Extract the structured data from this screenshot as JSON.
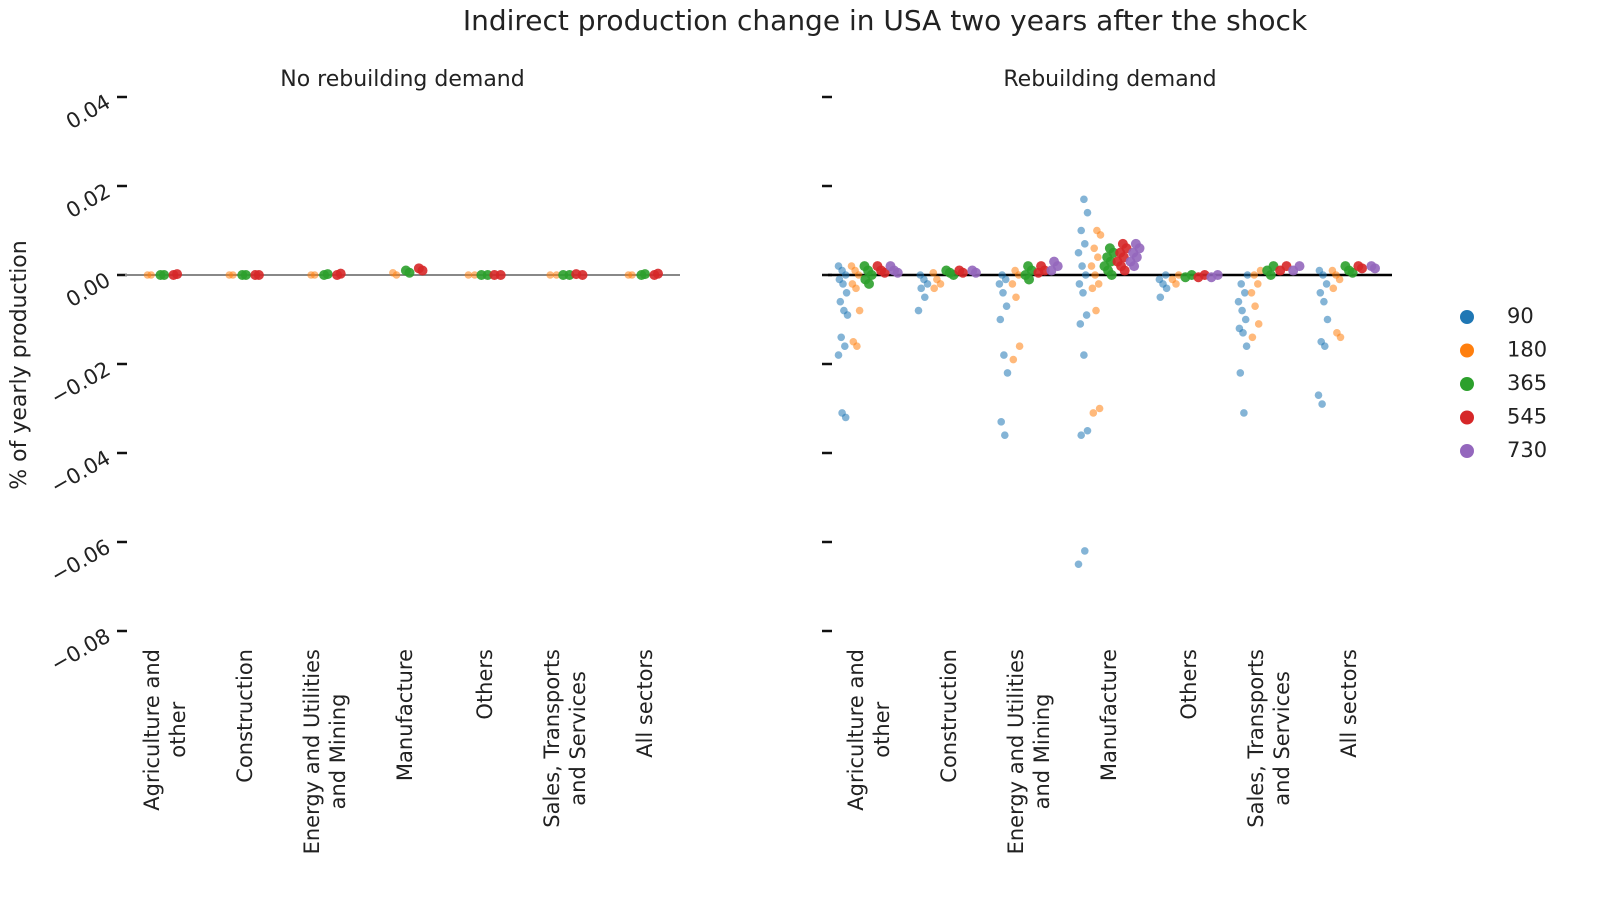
{
  "title": "Indirect production change in USA two years after the shock",
  "ylabel": "% of yearly production",
  "legend": "right",
  "series": [
    {
      "name": "90",
      "color": "#1f77b4"
    },
    {
      "name": "180",
      "color": "#ff7f0e"
    },
    {
      "name": "365",
      "color": "#2ca02c"
    },
    {
      "name": "545",
      "color": "#d62728"
    },
    {
      "name": "730",
      "color": "#9467bd"
    }
  ],
  "chart_data": [
    {
      "type": "strip",
      "title": "No rebuilding demand",
      "categories": [
        "Agriculture and\nother",
        "Construction",
        "Energy and Utilities\nand Mining",
        "Manufacture",
        "Others",
        "Sales, Transports\nand Services",
        "All sectors"
      ],
      "ylim": [
        -0.08,
        0.04
      ],
      "yticks": [
        {
          "value": -0.08,
          "label": "−0.08"
        },
        {
          "value": -0.06,
          "label": "−0.06"
        },
        {
          "value": -0.04,
          "label": "−0.04"
        },
        {
          "value": -0.02,
          "label": "−0.02"
        },
        {
          "value": 0,
          "label": "0.00"
        },
        0.02,
        0.04
      ],
      "values": [
        [
          [],
          [],
          [],
          [],
          [],
          [],
          []
        ],
        [
          [
            0,
            0
          ],
          [
            0,
            0
          ],
          [
            0,
            0
          ],
          [
            0.0005,
            0
          ],
          [
            0,
            0
          ],
          [
            0,
            0
          ],
          [
            0,
            0
          ]
        ],
        [
          [
            0,
            0
          ],
          [
            0,
            0
          ],
          [
            0,
            0.0002
          ],
          [
            0.001,
            0.0005
          ],
          [
            0,
            0
          ],
          [
            0,
            0
          ],
          [
            0,
            0.0002
          ]
        ],
        [
          [
            0,
            0.0002
          ],
          [
            0,
            0
          ],
          [
            0,
            0.0003
          ],
          [
            0.0015,
            0.001
          ],
          [
            0,
            0
          ],
          [
            0,
            0.0002
          ],
          [
            0,
            0.0003
          ]
        ],
        [
          [],
          [],
          [],
          [],
          [],
          [],
          []
        ]
      ]
    },
    {
      "type": "strip",
      "title": "Rebuilding demand",
      "categories": [
        "Agriculture and\nother",
        "Construction",
        "Energy and Utilities\nand Mining",
        "Manufacture",
        "Others",
        "Sales, Transports\nand Services",
        "All sectors"
      ],
      "ylim": [
        -0.08,
        0.04
      ],
      "yticks": [
        -0.08,
        -0.06,
        -0.04,
        -0.02,
        0,
        0.02,
        0.04
      ],
      "values": [
        [
          [
            0.002,
            0.001,
            0,
            -0.001,
            -0.002,
            -0.004,
            -0.006,
            -0.008,
            -0.009,
            -0.014,
            -0.016,
            -0.018,
            -0.031,
            -0.032
          ],
          [
            0,
            -0.001,
            -0.002,
            -0.003,
            -0.005,
            -0.008
          ],
          [
            0,
            -0.001,
            -0.002,
            -0.004,
            -0.007,
            -0.01,
            -0.018,
            -0.022,
            -0.033,
            -0.036
          ],
          [
            0.017,
            0.014,
            0.01,
            0.007,
            0.005,
            0.002,
            0,
            -0.002,
            -0.004,
            -0.009,
            -0.011,
            -0.018,
            -0.035,
            -0.036,
            -0.062,
            -0.065
          ],
          [
            0,
            -0.001,
            -0.002,
            -0.003,
            -0.005
          ],
          [
            0,
            -0.002,
            -0.004,
            -0.006,
            -0.008,
            -0.01,
            -0.012,
            -0.013,
            -0.016,
            -0.022,
            -0.031
          ],
          [
            0.001,
            0,
            -0.002,
            -0.004,
            -0.006,
            -0.01,
            -0.015,
            -0.016,
            -0.027,
            -0.029
          ]
        ],
        [
          [
            0.002,
            0.001,
            0,
            -0.002,
            -0.003,
            -0.008,
            -0.015,
            -0.016
          ],
          [
            0.0005,
            -0.001,
            -0.002,
            -0.003
          ],
          [
            0.001,
            0,
            -0.002,
            -0.005,
            -0.016,
            -0.019
          ],
          [
            0.01,
            0.009,
            0.006,
            0.004,
            0.002,
            0,
            -0.002,
            -0.003,
            -0.008,
            -0.03,
            -0.031
          ],
          [
            0,
            -0.001,
            -0.002
          ],
          [
            0.001,
            0,
            -0.002,
            -0.004,
            -0.007,
            -0.011,
            -0.014
          ],
          [
            0.001,
            0,
            -0.001,
            -0.003,
            -0.013,
            -0.014
          ]
        ],
        [
          [
            0.002,
            0.001,
            0,
            -0.001,
            -0.002
          ],
          [
            0.001,
            0.0005,
            0
          ],
          [
            0.002,
            0.001,
            0,
            -0.001
          ],
          [
            0.006,
            0.005,
            0.004,
            0.003,
            0.002,
            0.001,
            0
          ],
          [
            0,
            -0.0005
          ],
          [
            0.002,
            0.001,
            0
          ],
          [
            0.002,
            0.001,
            0.0005
          ]
        ],
        [
          [
            0.002,
            0.001,
            0.0005
          ],
          [
            0.001,
            0.0005
          ],
          [
            0.002,
            0.001,
            0.0005
          ],
          [
            0.007,
            0.006,
            0.005,
            0.004,
            0.003,
            0.002,
            0.001
          ],
          [
            0,
            -0.0005
          ],
          [
            0.002,
            0.001
          ],
          [
            0.002,
            0.0015
          ]
        ],
        [
          [
            0.002,
            0.001,
            0.0005
          ],
          [
            0.001,
            0.0005
          ],
          [
            0.003,
            0.002,
            0.001
          ],
          [
            0.007,
            0.006,
            0.005,
            0.004,
            0.003,
            0.002
          ],
          [
            0,
            -0.0005
          ],
          [
            0.002,
            0.001
          ],
          [
            0.002,
            0.0015
          ]
        ]
      ]
    }
  ]
}
